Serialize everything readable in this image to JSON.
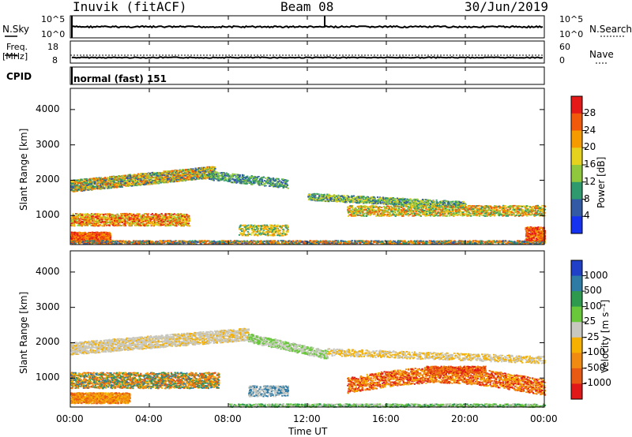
{
  "header": {
    "station": "Inuvik (fitACF)",
    "beam": "Beam 08",
    "date": "30/Jun/2019"
  },
  "strip_labels": {
    "nsky": "N.Sky",
    "nsearch": "N.Search",
    "freq": "Freq.",
    "freq_unit": "[MHz]",
    "nave": "Nave",
    "cpid": "CPID",
    "cpid_value": "normal (fast) 151"
  },
  "chart_data": [
    {
      "type": "line",
      "name_label": "noise",
      "left_ticks": [
        "10^5",
        "10^0"
      ],
      "right_ticks": [
        "10^5",
        "10^0"
      ],
      "note": ""
    },
    {
      "type": "line",
      "left_ticks": [
        "18",
        "8"
      ],
      "right_ticks": [
        "60",
        "0"
      ],
      "note": ""
    },
    {
      "type": "heatmap",
      "quantity": "Power",
      "ylabel": "Slant Range [km]",
      "yticks": [
        1000,
        2000,
        3000,
        4000
      ],
      "ylim": [
        180,
        4600
      ],
      "xlim": [
        "00:00",
        "00:00"
      ],
      "colorbar_label": "Power [dB]",
      "colorbar_ticks": [
        "28",
        "24",
        "20",
        "16",
        "12",
        "8",
        "4"
      ],
      "colorbar_colors": [
        "#e61919",
        "#f05a0a",
        "#f59b00",
        "#e6d21e",
        "#8fc83c",
        "#2e9a6e",
        "#325aa5",
        "#1432f0"
      ]
    },
    {
      "type": "heatmap",
      "quantity": "Velocity",
      "ylabel": "Slant Range [km]",
      "yticks": [
        1000,
        2000,
        3000,
        4000
      ],
      "ylim": [
        180,
        4600
      ],
      "xlim": [
        "00:00",
        "00:00"
      ],
      "colorbar_label": "Velocity [m s⁻¹]",
      "colorbar_ticks": [
        "1000",
        "500",
        "100",
        "25",
        "-25",
        "-100",
        "-500",
        "-1000"
      ],
      "colorbar_colors": [
        "#2040c8",
        "#2e7ba5",
        "#2e9a4e",
        "#68c83a",
        "#c8c8c0",
        "#f5b000",
        "#f08a10",
        "#e85a14",
        "#e01818"
      ]
    }
  ],
  "xaxis": {
    "ticks": [
      "00:00",
      "04:00",
      "08:00",
      "12:00",
      "16:00",
      "20:00",
      "00:00"
    ],
    "label": "Time UT"
  }
}
